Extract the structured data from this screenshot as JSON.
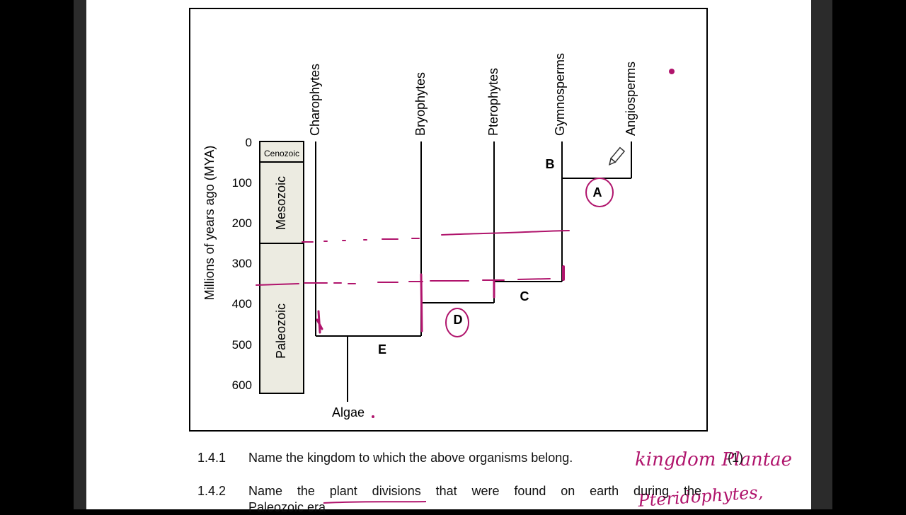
{
  "figure": {
    "y_axis_label": "Millions of years ago (MYA)",
    "y_ticks": [
      "0",
      "100",
      "200",
      "300",
      "400",
      "500",
      "600"
    ],
    "eras": [
      "Cenozoic",
      "Mesozoic",
      "Paleozoic"
    ],
    "groups": [
      "Charophytes",
      "Bryophytes",
      "Pterophytes",
      "Gymnosperms",
      "Angiosperms"
    ],
    "root_label": "Algae",
    "branch_labels": [
      "A",
      "B",
      "C",
      "D",
      "E"
    ]
  },
  "questions": [
    {
      "number": "1.4.1",
      "text": "Name the kingdom to which the above organisms belong.",
      "marks": "(1)"
    },
    {
      "number": "1.4.2",
      "text": "Name the plant divisions that were found on earth during the",
      "continuation": "Paleozoic era"
    }
  ],
  "annotations": {
    "answer_1": "kingdom Plantae",
    "answer_2": "Pteridophytes,"
  },
  "colors": {
    "ink": "#b0146c",
    "era_fill": "#ecebe1"
  }
}
